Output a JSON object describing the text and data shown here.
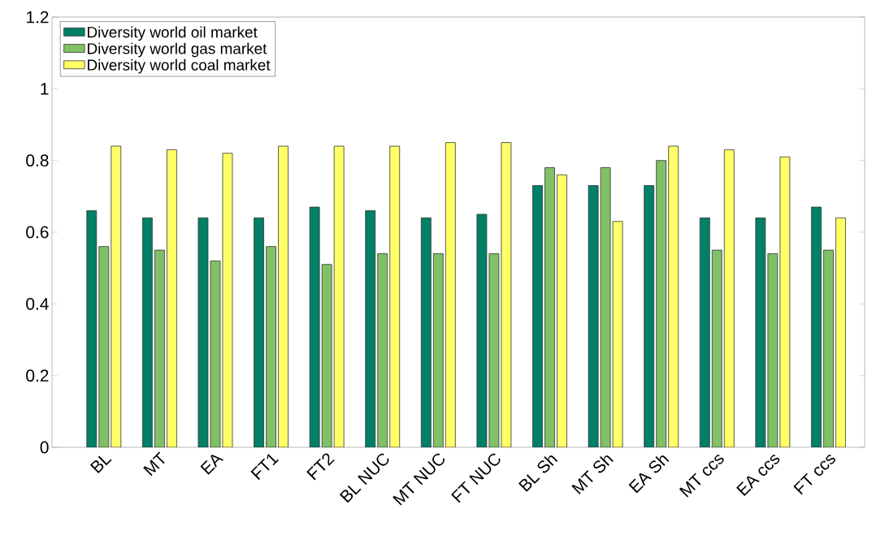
{
  "chart_data": {
    "type": "bar",
    "categories": [
      "BL",
      "MT",
      "EA",
      "FT1",
      "FT2",
      "BL NUC",
      "MT NUC",
      "FT NUC",
      "BL Sh",
      "MT Sh",
      "EA Sh",
      "MT ccs",
      "EA ccs",
      "FT ccs"
    ],
    "series": [
      {
        "name": "Diversity world oil market",
        "color": "#008066",
        "values": [
          0.66,
          0.64,
          0.64,
          0.64,
          0.67,
          0.66,
          0.64,
          0.65,
          0.73,
          0.73,
          0.73,
          0.64,
          0.64,
          0.67
        ]
      },
      {
        "name": "Diversity world gas market",
        "color": "#80c066",
        "values": [
          0.56,
          0.55,
          0.52,
          0.56,
          0.51,
          0.54,
          0.54,
          0.54,
          0.78,
          0.78,
          0.8,
          0.55,
          0.54,
          0.55
        ]
      },
      {
        "name": "Diversity world coal market",
        "color": "#ffff66",
        "values": [
          0.84,
          0.83,
          0.82,
          0.84,
          0.84,
          0.84,
          0.85,
          0.85,
          0.76,
          0.63,
          0.84,
          0.83,
          0.81,
          0.64
        ]
      }
    ],
    "ylim": [
      0,
      1.2
    ],
    "yticks": [
      0,
      0.2,
      0.4,
      0.6,
      0.8,
      1,
      1.2
    ],
    "grid": false,
    "legend": "top left"
  }
}
